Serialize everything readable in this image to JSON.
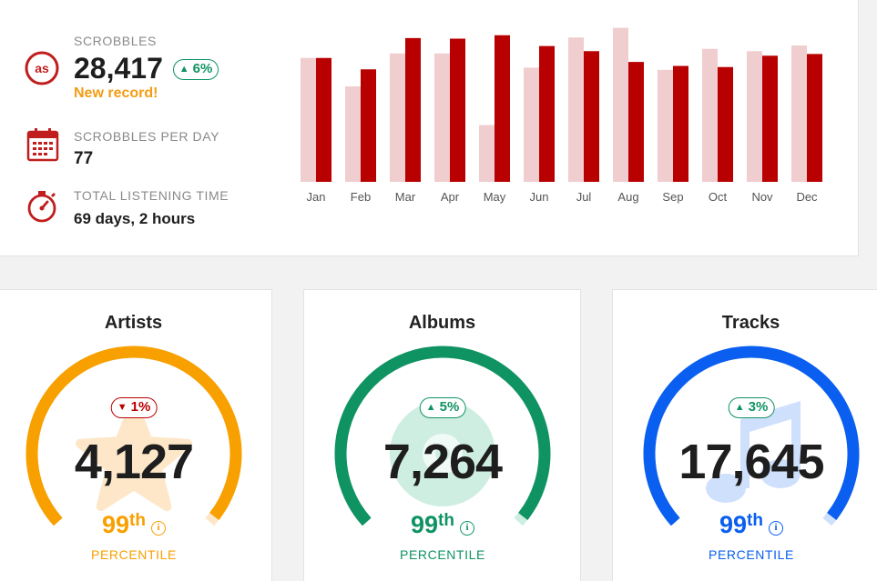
{
  "summary": {
    "scrobbles": {
      "label": "SCROBBLES",
      "value": "28,417",
      "change": "6%",
      "change_dir": "up",
      "record": "New record!"
    },
    "per_day": {
      "label": "SCROBBLES PER DAY",
      "value": "77"
    },
    "listening": {
      "label": "TOTAL LISTENING TIME",
      "value": "69 days, 2 hours"
    }
  },
  "chart_data": {
    "type": "bar",
    "categories": [
      "Jan",
      "Feb",
      "Mar",
      "Apr",
      "May",
      "Jun",
      "Jul",
      "Aug",
      "Sep",
      "Oct",
      "Nov",
      "Dec"
    ],
    "series": [
      {
        "values": [
          2180,
          1680,
          2260,
          2260,
          1000,
          2010,
          2540,
          2710,
          1970,
          2340,
          2300,
          2400
        ],
        "color": "#f0cdcf"
      },
      {
        "values": [
          2180,
          1980,
          2530,
          2520,
          2580,
          2390,
          2300,
          2110,
          2040,
          2020,
          2220,
          2250
        ],
        "color": "#b90000"
      }
    ],
    "ylim": [
      0,
      2800
    ],
    "grid": false,
    "legend": "none"
  },
  "gauges": [
    {
      "title": "Artists",
      "value": "4,127",
      "change": "1%",
      "change_dir": "down",
      "percentile": "99",
      "suffix": "th",
      "info": "i",
      "label": "PERCENTILE",
      "color": "#f7a000",
      "watermark": "star-icon",
      "watermark_color": "#fde7c8"
    },
    {
      "title": "Albums",
      "value": "7,264",
      "change": "5%",
      "change_dir": "up",
      "percentile": "99",
      "suffix": "th",
      "info": "i",
      "label": "PERCENTILE",
      "color": "#109363",
      "watermark": "vinyl-icon",
      "watermark_color": "#cdeee0"
    },
    {
      "title": "Tracks",
      "value": "17,645",
      "change": "3%",
      "change_dir": "up",
      "percentile": "99",
      "suffix": "th",
      "info": "i",
      "label": "PERCENTILE",
      "color": "#0a5ff0",
      "watermark": "music-note-icon",
      "watermark_color": "#cfe0fd"
    }
  ],
  "colors": {
    "accent_red": "#c01e1e",
    "record_orange": "#f39c12",
    "up_green": "#109363",
    "down_red": "#b90000"
  }
}
